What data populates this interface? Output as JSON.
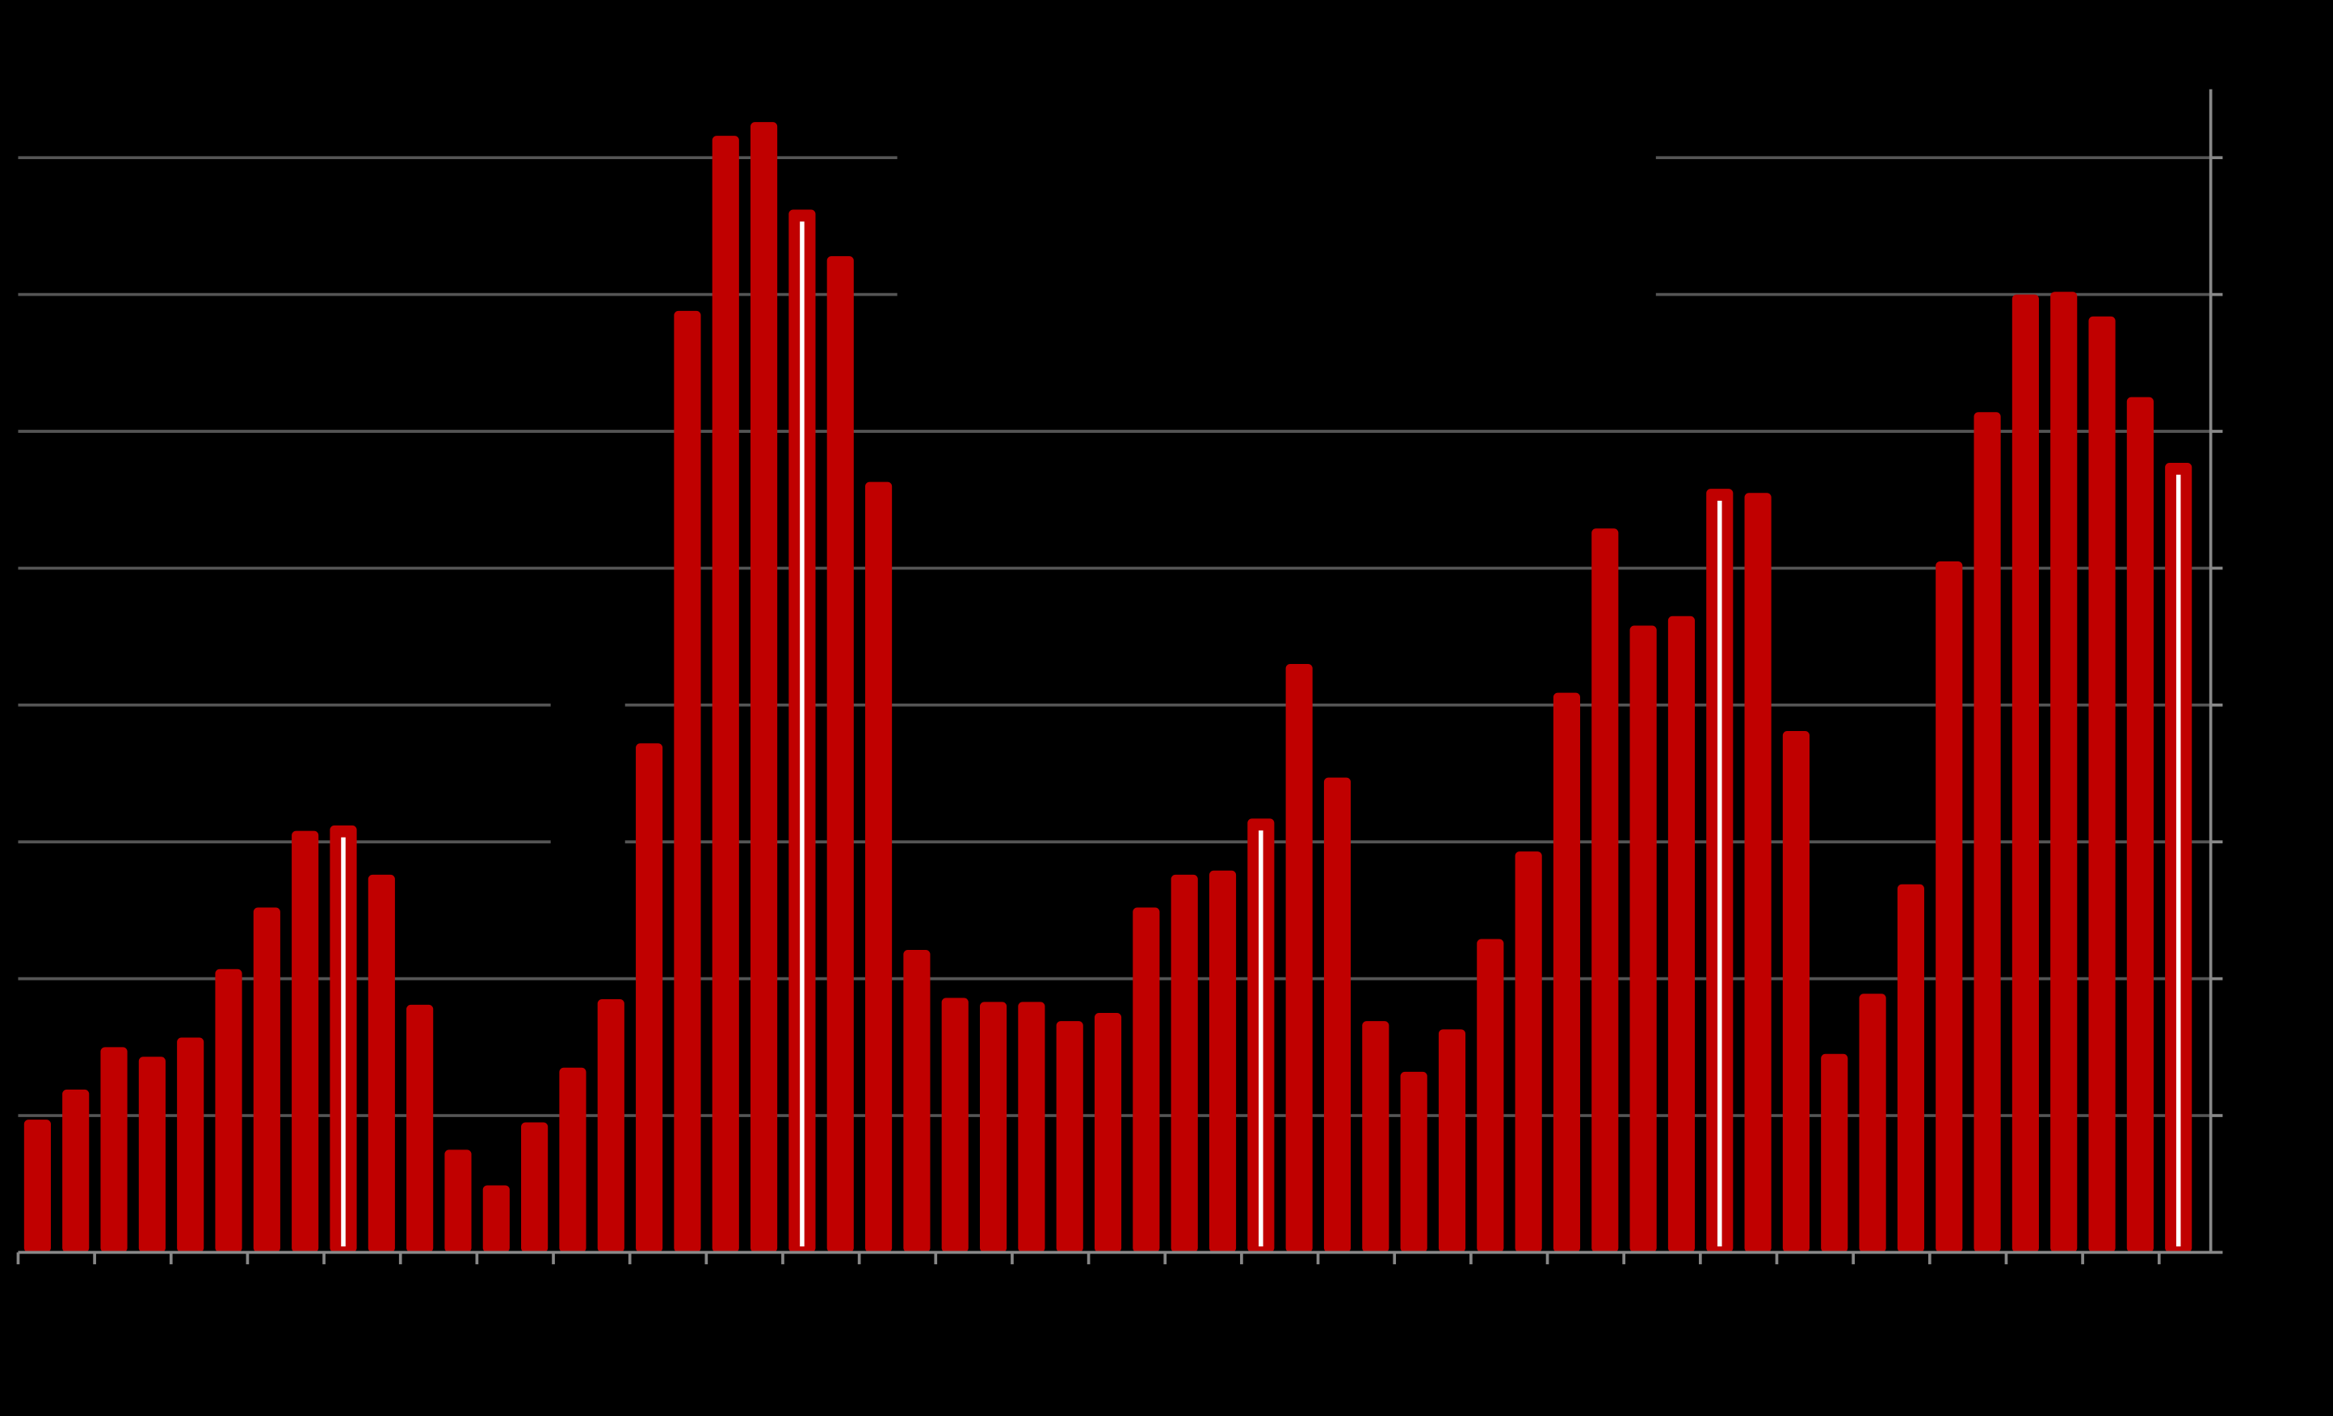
{
  "chart_data": {
    "type": "bar",
    "categories": [
      null,
      null,
      null,
      null,
      null,
      null,
      null,
      null,
      null,
      null,
      null,
      null,
      null,
      null,
      null,
      null,
      null,
      null,
      null,
      null,
      null,
      null,
      null,
      null,
      null,
      null,
      null,
      null,
      null,
      null,
      null,
      null,
      null,
      null,
      null,
      null,
      null,
      null,
      null,
      null,
      null,
      null,
      null,
      null,
      null,
      null,
      null,
      null,
      null,
      null,
      null,
      null,
      null,
      null,
      null,
      null,
      null
    ],
    "values": [
      0.97,
      1.19,
      1.5,
      1.43,
      1.57,
      2.07,
      2.52,
      3.08,
      3.12,
      2.76,
      1.81,
      0.75,
      0.49,
      0.95,
      1.35,
      1.85,
      3.72,
      6.88,
      8.16,
      8.26,
      7.62,
      7.28,
      5.63,
      2.21,
      1.86,
      1.83,
      1.83,
      1.69,
      1.75,
      2.52,
      2.76,
      2.79,
      3.17,
      4.3,
      3.47,
      1.69,
      1.32,
      1.63,
      2.29,
      2.93,
      4.09,
      5.29,
      4.58,
      4.65,
      5.58,
      5.55,
      3.81,
      1.45,
      1.89,
      2.69,
      5.05,
      6.14,
      7.0,
      7.02,
      6.84,
      6.25,
      5.77
    ],
    "color": "#c00000",
    "highlighted": [
      8,
      20,
      32,
      44,
      56
    ],
    "highlight_color": "#ffffff",
    "ylim": [
      0,
      8.5
    ],
    "yticks": [
      1,
      2,
      3,
      4,
      5,
      6,
      7,
      8
    ],
    "grid": true,
    "y_axis_side": "right"
  }
}
